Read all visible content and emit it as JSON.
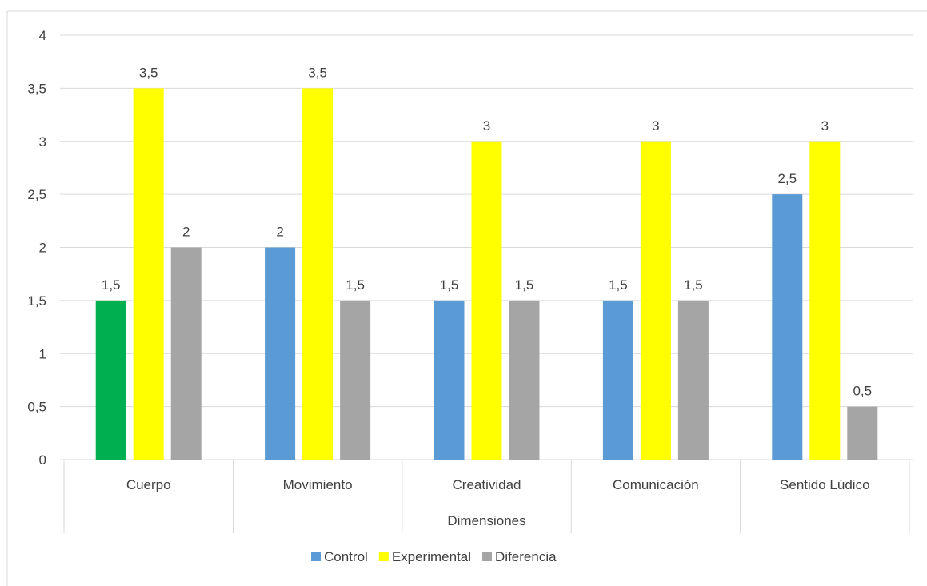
{
  "chart_data": {
    "type": "bar",
    "title": "",
    "xlabel": "Dimensiones",
    "ylabel": "",
    "ylim": [
      0,
      4
    ],
    "yticks": [
      "0",
      "0,5",
      "1",
      "1,5",
      "2",
      "2,5",
      "3",
      "3,5",
      "4"
    ],
    "grid": true,
    "legend_position": "bottom",
    "categories": [
      "Cuerpo",
      "Movimiento",
      "Creatividad",
      "Comunicación",
      "Sentido Lúdico"
    ],
    "series": [
      {
        "name": "Control",
        "color": "#5b9bd5",
        "point_colors": [
          "#00b050",
          "#5b9bd5",
          "#5b9bd5",
          "#5b9bd5",
          "#5b9bd5"
        ],
        "values": [
          1.5,
          2,
          1.5,
          1.5,
          2.5
        ],
        "labels": [
          "1,5",
          "2",
          "1,5",
          "1,5",
          "2,5"
        ]
      },
      {
        "name": "Experimental",
        "color": "#ffff00",
        "values": [
          3.5,
          3.5,
          3,
          3,
          3
        ],
        "labels": [
          "3,5",
          "3,5",
          "3",
          "3",
          "3"
        ]
      },
      {
        "name": "Diferencia",
        "color": "#a5a5a5",
        "values": [
          2,
          1.5,
          1.5,
          1.5,
          0.5
        ],
        "labels": [
          "2",
          "1,5",
          "1,5",
          "1,5",
          "0,5"
        ]
      }
    ]
  },
  "colors": {
    "gridline": "#d9d9d9",
    "axis_text": "#404040",
    "frame": "#d9d9d9"
  }
}
